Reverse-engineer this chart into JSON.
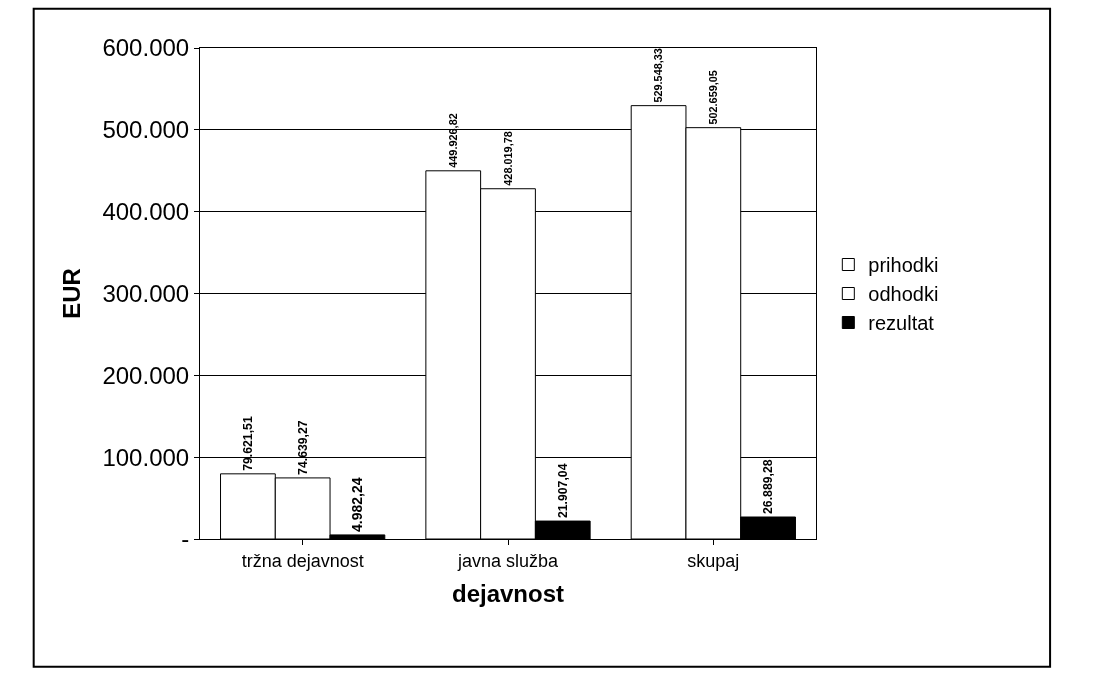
{
  "chart_data": {
    "type": "bar",
    "xlabel": "dejavnost",
    "ylabel": "EUR",
    "categories": [
      "tržna dejavnost",
      "javna služba",
      "skupaj"
    ],
    "series": [
      {
        "name": "prihodki",
        "color": "#ffffff",
        "values": [
          79621.51,
          449926.82,
          529548.33
        ],
        "value_labels": [
          "79.621,51",
          "449.926,82",
          "529.548,33"
        ]
      },
      {
        "name": "odhodki",
        "color": "#ffffff",
        "values": [
          74639.27,
          428019.78,
          502659.05
        ],
        "value_labels": [
          "74.639,27",
          "428.019,78",
          "502.659,05"
        ]
      },
      {
        "name": "rezultat",
        "color": "#000000",
        "values": [
          4982.24,
          21907.04,
          26889.28
        ],
        "value_labels": [
          "4.982,24",
          "21.907,04",
          "26.889,28"
        ]
      }
    ],
    "ylim": [
      0,
      600000
    ],
    "yticks": [
      {
        "value": 0,
        "label": "-"
      },
      {
        "value": 100000,
        "label": "100.000"
      },
      {
        "value": 200000,
        "label": "200.000"
      },
      {
        "value": 300000,
        "label": "300.000"
      },
      {
        "value": 400000,
        "label": "400.000"
      },
      {
        "value": 500000,
        "label": "500.000"
      },
      {
        "value": 600000,
        "label": "600.000"
      }
    ],
    "grid": "y",
    "legend": "right"
  }
}
